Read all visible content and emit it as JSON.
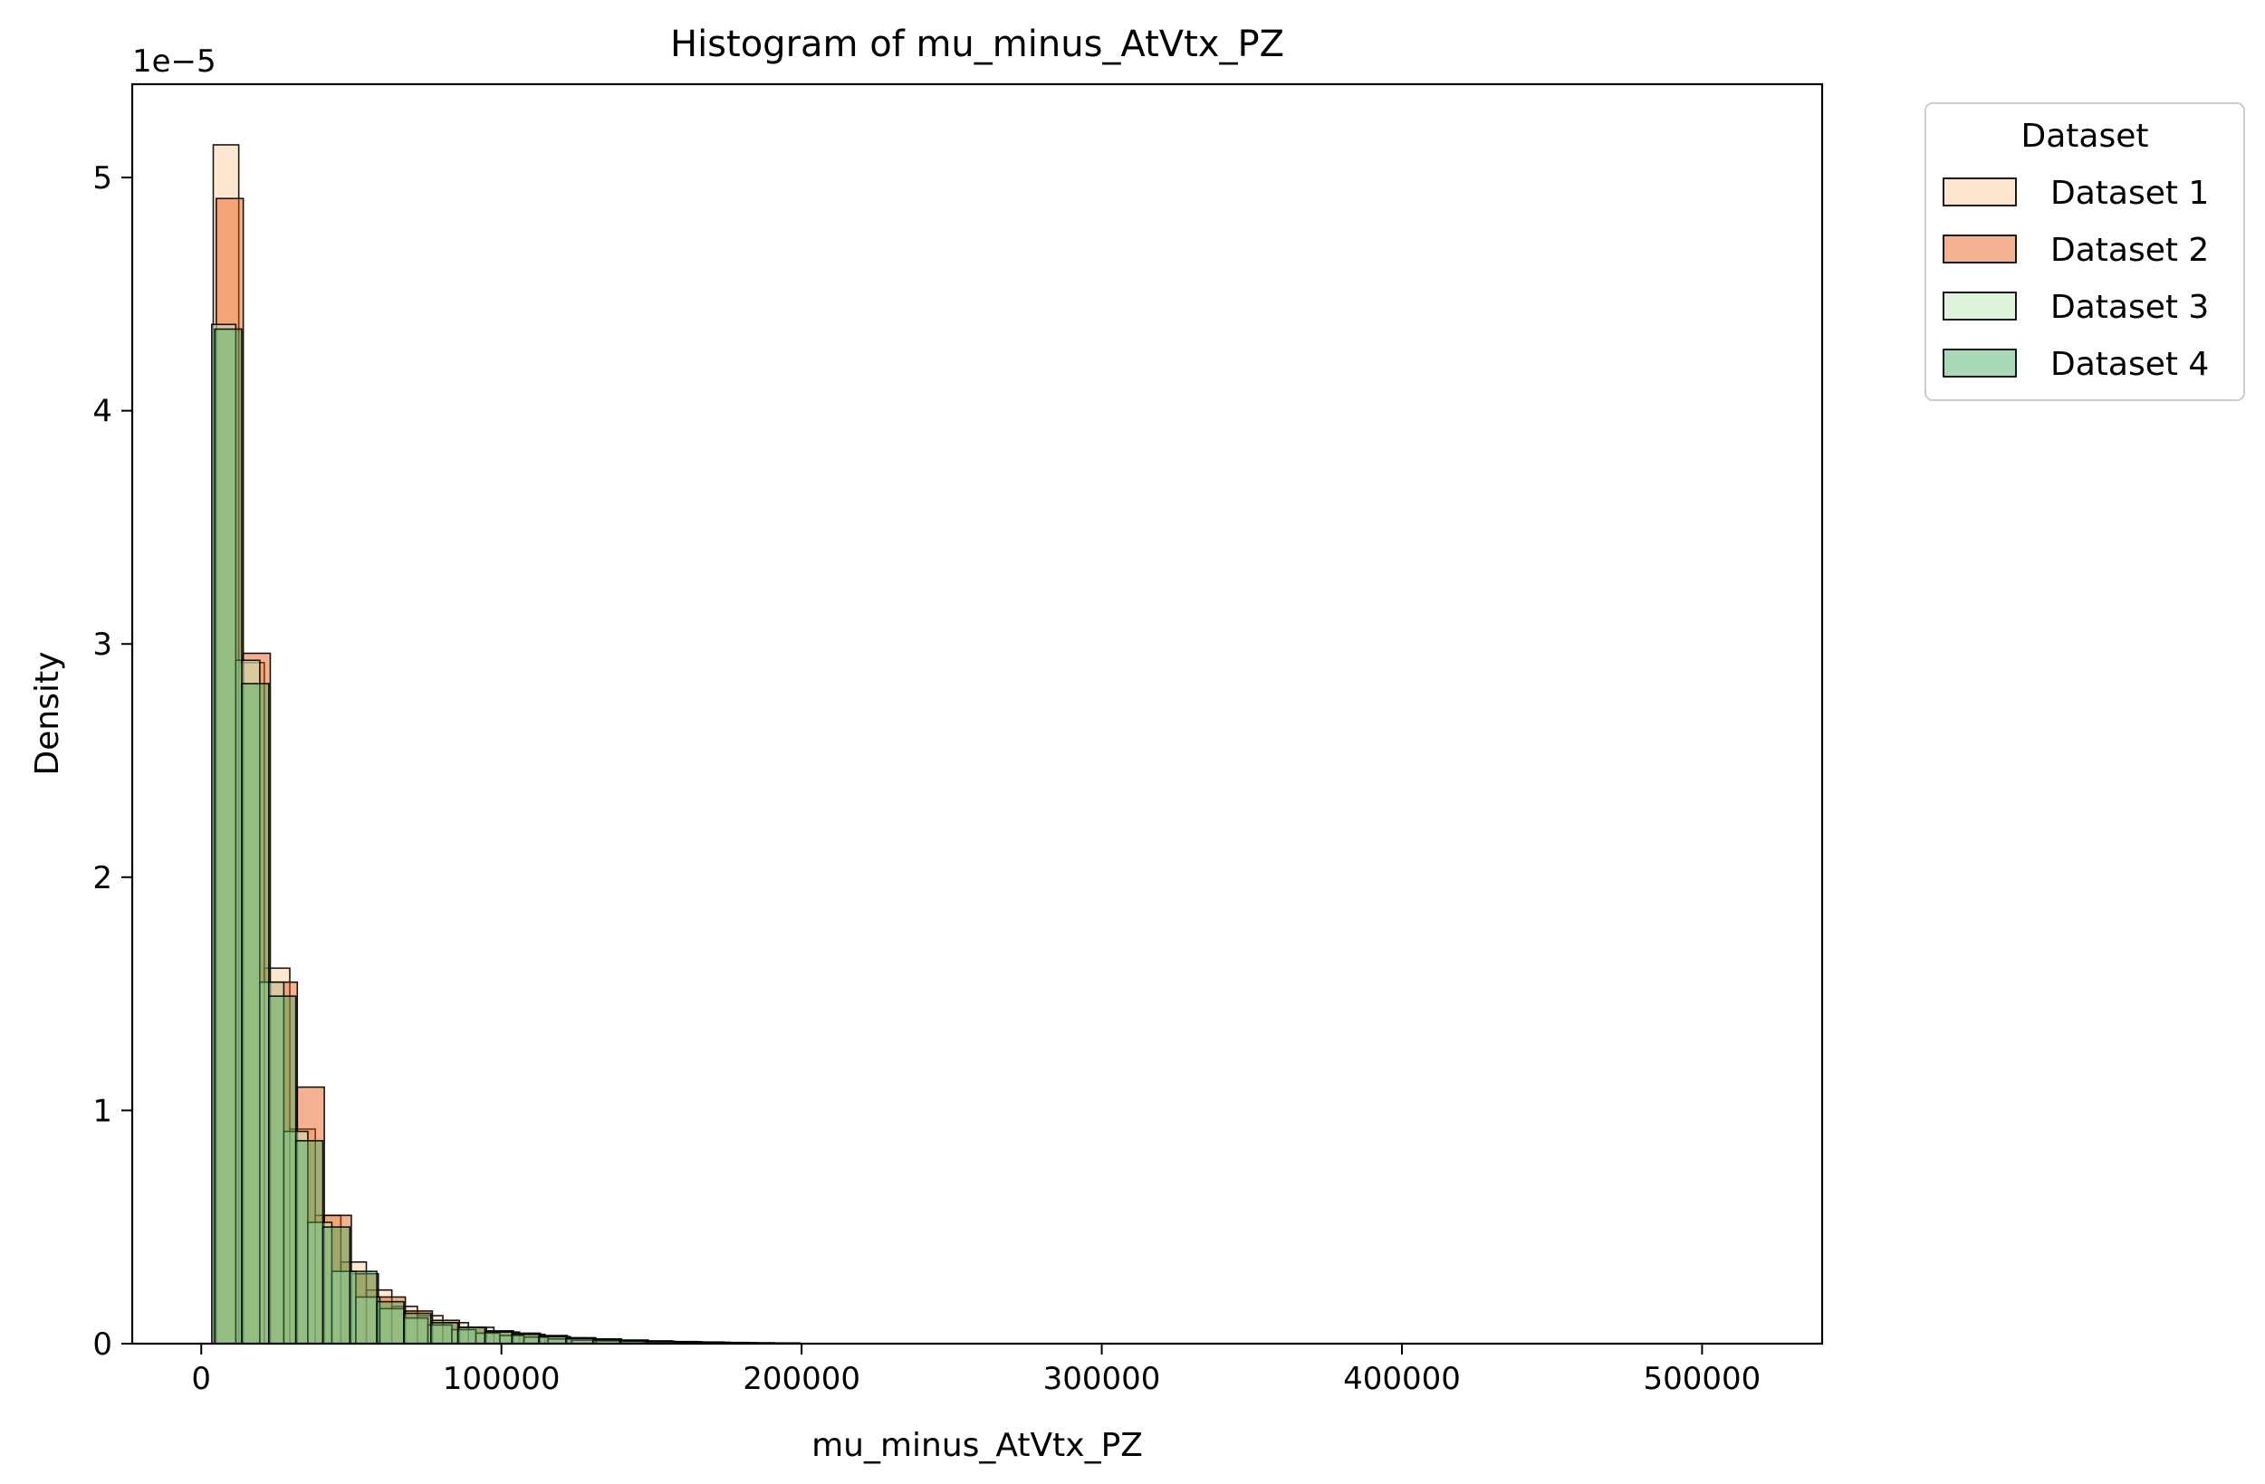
{
  "chart_data": {
    "type": "histogram",
    "title": "Histogram of mu_minus_AtVtx_PZ",
    "xlabel": "mu_minus_AtVtx_PZ",
    "ylabel": "Density",
    "y_multiplier_label": "1e−5",
    "y_scale": 1e-05,
    "xlim": [
      -23000,
      540000
    ],
    "ylim": [
      0,
      5.4
    ],
    "x_ticks": [
      0,
      100000,
      200000,
      300000,
      400000,
      500000
    ],
    "x_tick_labels": [
      "0",
      "100000",
      "200000",
      "300000",
      "400000",
      "500000"
    ],
    "y_ticks": [
      0,
      1,
      2,
      3,
      4,
      5
    ],
    "y_tick_labels": [
      "0",
      "1",
      "2",
      "3",
      "4",
      "5"
    ],
    "grid": false,
    "legend": {
      "title": "Dataset",
      "placement": "outside-upper-right"
    },
    "series": [
      {
        "name": "Dataset 1",
        "color": "#fdd0a2",
        "alpha": 0.5,
        "bins": [
          [
            4000,
            12500,
            5.14
          ],
          [
            12500,
            21000,
            2.92
          ],
          [
            21000,
            29500,
            1.61
          ],
          [
            29500,
            38000,
            0.92
          ],
          [
            38000,
            46500,
            0.55
          ],
          [
            46500,
            55000,
            0.35
          ],
          [
            55000,
            63500,
            0.23
          ],
          [
            63500,
            72000,
            0.16
          ],
          [
            72000,
            80500,
            0.12
          ],
          [
            80500,
            89000,
            0.09
          ],
          [
            89000,
            97500,
            0.07
          ],
          [
            97500,
            106000,
            0.05
          ],
          [
            106000,
            114500,
            0.04
          ],
          [
            114500,
            123000,
            0.03
          ],
          [
            123000,
            131500,
            0.025
          ],
          [
            131500,
            140000,
            0.02
          ],
          [
            140000,
            148500,
            0.015
          ],
          [
            148500,
            157000,
            0.012
          ],
          [
            157000,
            165500,
            0.009
          ],
          [
            165500,
            174000,
            0.007
          ],
          [
            174000,
            182500,
            0.005
          ],
          [
            182500,
            191000,
            0.004
          ],
          [
            191000,
            199500,
            0.003
          ]
        ]
      },
      {
        "name": "Dataset 2",
        "color": "#e6550d",
        "alpha": 0.45,
        "bins": [
          [
            5000,
            14000,
            4.91
          ],
          [
            14000,
            23000,
            2.96
          ],
          [
            23000,
            32000,
            1.55
          ],
          [
            32000,
            41000,
            1.1
          ],
          [
            41000,
            50000,
            0.55
          ],
          [
            50000,
            59000,
            0.3
          ],
          [
            59000,
            68000,
            0.2
          ],
          [
            68000,
            77000,
            0.14
          ],
          [
            77000,
            86000,
            0.1
          ],
          [
            86000,
            95000,
            0.07
          ],
          [
            95000,
            104000,
            0.055
          ],
          [
            104000,
            113000,
            0.045
          ],
          [
            113000,
            122000,
            0.035
          ],
          [
            122000,
            131000,
            0.025
          ],
          [
            131000,
            140000,
            0.02
          ],
          [
            140000,
            149000,
            0.015
          ],
          [
            149000,
            158000,
            0.01
          ],
          [
            158000,
            167000,
            0.008
          ],
          [
            167000,
            176000,
            0.006
          ],
          [
            176000,
            185000,
            0.004
          ]
        ]
      },
      {
        "name": "Dataset 3",
        "color": "#c7e9c0",
        "alpha": 0.55,
        "bins": [
          [
            3500,
            11500,
            4.37
          ],
          [
            11500,
            19500,
            2.93
          ],
          [
            19500,
            27500,
            1.55
          ],
          [
            27500,
            35500,
            0.91
          ],
          [
            35500,
            43500,
            0.52
          ],
          [
            43500,
            51500,
            0.31
          ],
          [
            51500,
            59500,
            0.2
          ],
          [
            59500,
            67500,
            0.15
          ],
          [
            67500,
            75500,
            0.11
          ],
          [
            75500,
            83500,
            0.08
          ],
          [
            83500,
            91500,
            0.06
          ],
          [
            91500,
            99500,
            0.045
          ],
          [
            99500,
            107500,
            0.035
          ],
          [
            107500,
            115500,
            0.028
          ],
          [
            115500,
            123500,
            0.02
          ],
          [
            123500,
            131500,
            0.015
          ],
          [
            131500,
            139500,
            0.012
          ],
          [
            139500,
            147500,
            0.009
          ],
          [
            147500,
            155500,
            0.007
          ],
          [
            155500,
            163500,
            0.005
          ]
        ]
      },
      {
        "name": "Dataset 4",
        "color": "#41ab5d",
        "alpha": 0.45,
        "bins": [
          [
            4500,
            13500,
            4.35
          ],
          [
            13500,
            22500,
            2.83
          ],
          [
            22500,
            31500,
            1.49
          ],
          [
            31500,
            40500,
            0.87
          ],
          [
            40500,
            49500,
            0.5
          ],
          [
            49500,
            58500,
            0.31
          ],
          [
            58500,
            67500,
            0.18
          ],
          [
            67500,
            76500,
            0.13
          ],
          [
            76500,
            85500,
            0.09
          ],
          [
            85500,
            94500,
            0.07
          ],
          [
            94500,
            103500,
            0.05
          ],
          [
            103500,
            112500,
            0.04
          ],
          [
            112500,
            121500,
            0.03
          ],
          [
            121500,
            130500,
            0.022
          ],
          [
            130500,
            139500,
            0.016
          ],
          [
            139500,
            148500,
            0.012
          ],
          [
            148500,
            157500,
            0.009
          ],
          [
            157500,
            166500,
            0.006
          ],
          [
            166500,
            175500,
            0.004
          ]
        ]
      }
    ]
  }
}
